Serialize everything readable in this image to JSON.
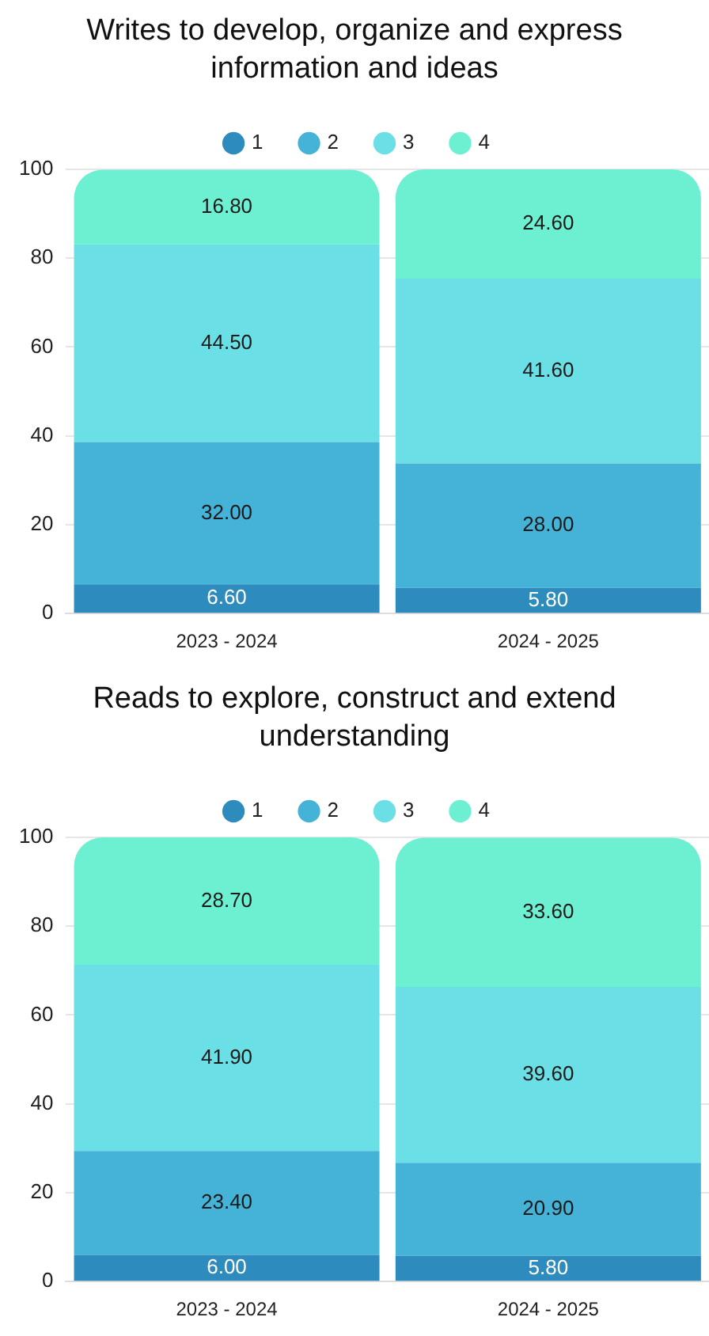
{
  "chart_data": [
    {
      "type": "bar",
      "stacked": true,
      "title": "Writes to develop, organize and express information and ideas",
      "categories": [
        "2023 - 2024",
        "2024 - 2025"
      ],
      "series": [
        {
          "name": "1",
          "color": "#2e8bbd",
          "values": [
            6.6,
            5.8
          ],
          "value_labels": [
            "6.60",
            "5.80"
          ]
        },
        {
          "name": "2",
          "color": "#45b3d8",
          "values": [
            32.0,
            28.0
          ],
          "value_labels": [
            "32.00",
            "28.00"
          ]
        },
        {
          "name": "3",
          "color": "#6bdfe6",
          "values": [
            44.5,
            41.6
          ],
          "value_labels": [
            "44.50",
            "41.60"
          ]
        },
        {
          "name": "4",
          "color": "#6df0d2",
          "values": [
            16.8,
            24.6
          ],
          "value_labels": [
            "16.80",
            "24.60"
          ]
        }
      ],
      "ylim": [
        0,
        100
      ],
      "yticks": [
        0,
        20,
        40,
        60,
        80,
        100
      ],
      "grid": "y",
      "legend": "top"
    },
    {
      "type": "bar",
      "stacked": true,
      "title": "Reads to explore, construct and extend understanding",
      "categories": [
        "2023 - 2024",
        "2024 - 2025"
      ],
      "series": [
        {
          "name": "1",
          "color": "#2e8bbd",
          "values": [
            6.0,
            5.8
          ],
          "value_labels": [
            "6.00",
            "5.80"
          ]
        },
        {
          "name": "2",
          "color": "#45b3d8",
          "values": [
            23.4,
            20.9
          ],
          "value_labels": [
            "23.40",
            "20.90"
          ]
        },
        {
          "name": "3",
          "color": "#6bdfe6",
          "values": [
            41.9,
            39.6
          ],
          "value_labels": [
            "41.90",
            "39.60"
          ]
        },
        {
          "name": "4",
          "color": "#6df0d2",
          "values": [
            28.7,
            33.6
          ],
          "value_labels": [
            "28.70",
            "33.60"
          ]
        }
      ],
      "ylim": [
        0,
        100
      ],
      "yticks": [
        0,
        20,
        40,
        60,
        80,
        100
      ],
      "grid": "y",
      "legend": "top"
    }
  ]
}
